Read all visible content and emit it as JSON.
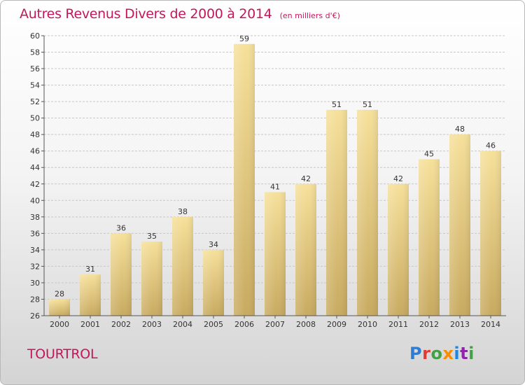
{
  "header": {
    "title": "Autres Revenus Divers de 2000 à 2014",
    "subtitle": "(en milliers d'€)"
  },
  "footer": {
    "place": "TOURTROL",
    "logo": "Proxiti",
    "logo_letters": [
      "P",
      "r",
      "o",
      "x",
      "i",
      "t",
      "i"
    ],
    "logo_colors": [
      "#2e7dd2",
      "#e53935",
      "#43a047",
      "#fb8c00",
      "#1e88e5",
      "#8e24aa",
      "#43a047"
    ]
  },
  "colors": {
    "title": "#c2185b",
    "bar_top": "#f6e09a",
    "bar_bottom": "#c8aa60",
    "grid": "#c8c8c8",
    "axis": "#555555"
  },
  "chart_data": {
    "type": "bar",
    "title": "Autres Revenus Divers de 2000 à 2014",
    "subtitle": "(en milliers d'€)",
    "xlabel": "",
    "ylabel": "",
    "categories": [
      "2000",
      "2001",
      "2002",
      "2003",
      "2004",
      "2005",
      "2006",
      "2007",
      "2008",
      "2009",
      "2010",
      "2011",
      "2012",
      "2013",
      "2014"
    ],
    "values": [
      28,
      31,
      36,
      35,
      38,
      34,
      59,
      41,
      42,
      51,
      51,
      42,
      45,
      48,
      46
    ],
    "ylim": [
      26,
      60
    ],
    "yticks": [
      26,
      28,
      30,
      32,
      34,
      36,
      38,
      40,
      42,
      44,
      46,
      48,
      50,
      52,
      54,
      56,
      58,
      60
    ],
    "grid": true,
    "data_labels": true
  }
}
